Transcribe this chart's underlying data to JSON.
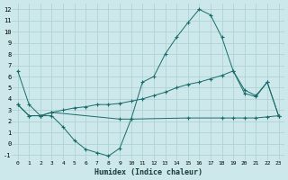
{
  "xlabel": "Humidex (Indice chaleur)",
  "bg_color": "#cce8ea",
  "line_color": "#1a6b6b",
  "grid_color": "#aacfd3",
  "xlim": [
    -0.5,
    23.5
  ],
  "ylim": [
    -1.5,
    12.5
  ],
  "xticks": [
    0,
    1,
    2,
    3,
    4,
    5,
    6,
    7,
    8,
    9,
    10,
    11,
    12,
    13,
    14,
    15,
    16,
    17,
    18,
    19,
    20,
    21,
    22,
    23
  ],
  "yticks": [
    -1,
    0,
    1,
    2,
    3,
    4,
    5,
    6,
    7,
    8,
    9,
    10,
    11,
    12
  ],
  "series1": [
    [
      0,
      6.5
    ],
    [
      1,
      3.5
    ],
    [
      2,
      2.5
    ],
    [
      3,
      2.5
    ],
    [
      4,
      1.5
    ],
    [
      5,
      0.3
    ],
    [
      6,
      -0.5
    ],
    [
      7,
      -0.8
    ],
    [
      8,
      -1.1
    ],
    [
      9,
      -0.4
    ],
    [
      10,
      2.2
    ],
    [
      11,
      5.5
    ],
    [
      12,
      6.0
    ],
    [
      13,
      8.0
    ],
    [
      14,
      9.5
    ],
    [
      15,
      10.8
    ],
    [
      16,
      12.0
    ],
    [
      17,
      11.5
    ],
    [
      18,
      9.5
    ],
    [
      19,
      6.5
    ],
    [
      20,
      4.5
    ],
    [
      21,
      4.2
    ],
    [
      22,
      5.5
    ],
    [
      23,
      2.5
    ]
  ],
  "series2": [
    [
      0,
      3.5
    ],
    [
      1,
      2.5
    ],
    [
      2,
      2.5
    ],
    [
      3,
      2.8
    ],
    [
      4,
      3.0
    ],
    [
      5,
      3.2
    ],
    [
      6,
      3.3
    ],
    [
      7,
      3.5
    ],
    [
      8,
      3.5
    ],
    [
      9,
      3.6
    ],
    [
      10,
      3.8
    ],
    [
      11,
      4.0
    ],
    [
      12,
      4.3
    ],
    [
      13,
      4.6
    ],
    [
      14,
      5.0
    ],
    [
      15,
      5.3
    ],
    [
      16,
      5.5
    ],
    [
      17,
      5.8
    ],
    [
      18,
      6.1
    ],
    [
      19,
      6.5
    ],
    [
      20,
      4.8
    ],
    [
      21,
      4.3
    ],
    [
      22,
      5.5
    ],
    [
      23,
      2.5
    ]
  ],
  "series3": [
    [
      0,
      3.5
    ],
    [
      1,
      2.5
    ],
    [
      2,
      2.5
    ],
    [
      3,
      2.8
    ],
    [
      9,
      2.2
    ],
    [
      10,
      2.2
    ],
    [
      15,
      2.3
    ],
    [
      18,
      2.3
    ],
    [
      19,
      2.3
    ],
    [
      20,
      2.3
    ],
    [
      21,
      2.3
    ],
    [
      22,
      2.4
    ],
    [
      23,
      2.5
    ]
  ]
}
